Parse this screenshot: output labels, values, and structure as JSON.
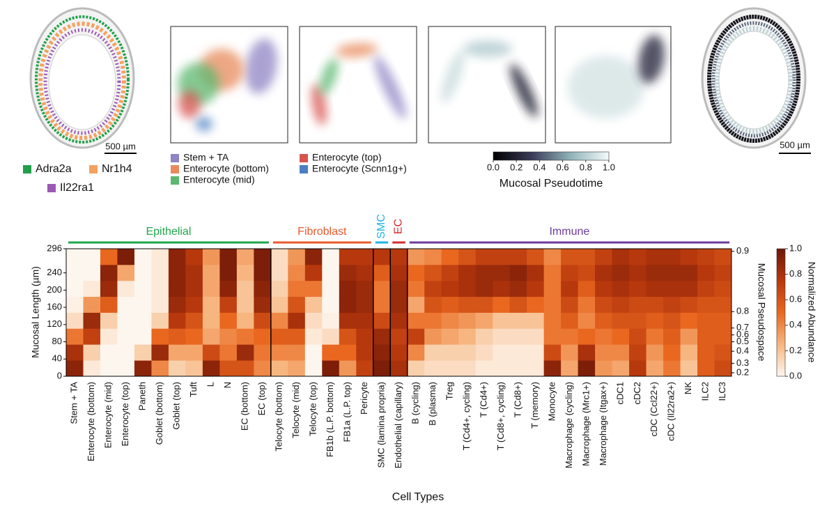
{
  "panels": {
    "gene_legend": [
      {
        "name": "Adra2a",
        "color": "#21a04a"
      },
      {
        "name": "Nr1h4",
        "color": "#f4a261"
      },
      {
        "name": "Il22ra1",
        "color": "#9b59b6"
      }
    ],
    "scale_bar": "500 µm",
    "cluster_legend": [
      {
        "name": "Stem + TA",
        "color": "#8f84c4"
      },
      {
        "name": "Enterocyte (bottom)",
        "color": "#e88a5c"
      },
      {
        "name": "Enterocyte (mid)",
        "color": "#5cb870"
      },
      {
        "name": "Enterocyte (top)",
        "color": "#d9534f"
      },
      {
        "name": "Enterocyte (Scnn1g+)",
        "color": "#4a7fc1"
      }
    ],
    "pseudotime_colorbar": {
      "label": "Mucosal Pseudotime",
      "colorscale": [
        "#000000",
        "#3b3b58",
        "#8fb3b8",
        "#f5fafa"
      ],
      "lim": [
        0,
        1
      ],
      "ticks": [
        {
          "value": 0,
          "label": "0.0"
        },
        0.2,
        0.4,
        0.6,
        0.8,
        {
          "value": 1,
          "label": "1.0"
        }
      ]
    }
  },
  "chart_data": {
    "type": "heatmap",
    "xlabel": "Cell Types",
    "ylabel": "Mucosal Length (µm)",
    "y2label": "Mucosal Pseudospace",
    "categories": [
      "Stem + TA",
      "Enterocyte (bottom)",
      "Enterocyte (mid)",
      "Enterocyte (top)",
      "Paneth",
      "Goblet (bottom)",
      "Goblet (top)",
      "Tuft",
      "L",
      "N",
      "EC (bottom)",
      "EC (top)",
      "Telocyte (bottom)",
      "Telocyte (mid)",
      "Telocyte (top)",
      "FB1b (L.P. bottom)",
      "FB1a (L.P. top)",
      "Pericyte",
      "SMC (lamina propria)",
      "Endothelial (capillary)",
      "B (cycling)",
      "B (plasma)",
      "Treg",
      "T (Cd4+, cycling)",
      "T (Cd4+)",
      "T (Cd8+, cycling)",
      "T (Cd8+)",
      "T (memory)",
      "Monocyte",
      "Macrophage (cycling)",
      "Macrophage (Mrc1+)",
      "Macrophage (Itgax+)",
      "cDC1",
      "cDC2",
      "cDC (Ccl22+)",
      "cDC (Il22ra2+)",
      "NK",
      "ILC2",
      "ILC3"
    ],
    "groups": [
      {
        "name": "Epithelial",
        "color": "#1ea64c",
        "count": 12
      },
      {
        "name": "Fibroblast",
        "color": "#e9582c",
        "count": 6
      },
      {
        "name": "SMC",
        "color": "#1fb3e6",
        "count": 1
      },
      {
        "name": "EC",
        "color": "#d42a2e",
        "count": 1
      },
      {
        "name": "Immune",
        "color": "#6b3b9c",
        "count": 19
      }
    ],
    "y_bins": [
      0,
      37,
      74,
      111,
      148,
      185,
      222,
      259,
      296
    ],
    "values": [
      [
        0.9,
        0.8,
        0.45,
        0.1,
        0.02,
        0,
        0,
        0
      ],
      [
        0.05,
        0.15,
        0.7,
        0.85,
        0.35,
        0.05,
        0,
        0
      ],
      [
        0,
        0,
        0.05,
        0.15,
        0.55,
        0.85,
        0.9,
        0.5
      ],
      [
        0,
        0,
        0,
        0,
        0,
        0.05,
        0.3,
        0.95
      ],
      [
        0.9,
        0.15,
        0,
        0,
        0,
        0,
        0,
        0
      ],
      [
        0.4,
        0.85,
        0.5,
        0.15,
        0.05,
        0.05,
        0.05,
        0.05
      ],
      [
        0.15,
        0.3,
        0.55,
        0.75,
        0.85,
        0.9,
        0.9,
        0.9
      ],
      [
        0.2,
        0.3,
        0.5,
        0.6,
        0.75,
        0.8,
        0.8,
        0.75
      ],
      [
        0.9,
        0.65,
        0.3,
        0.25,
        0.25,
        0.3,
        0.3,
        0.35
      ],
      [
        0.6,
        0.45,
        0.4,
        0.5,
        0.7,
        0.9,
        0.95,
        0.95
      ],
      [
        0.6,
        0.85,
        0.45,
        0.25,
        0.2,
        0.2,
        0.25,
        0.3
      ],
      [
        0.4,
        0.45,
        0.5,
        0.65,
        0.85,
        0.9,
        0.95,
        0.95
      ],
      [
        0.25,
        0.4,
        0.55,
        0.4,
        0.2,
        0.15,
        0.1,
        0.1
      ],
      [
        0.3,
        0.4,
        0.55,
        0.8,
        0.6,
        0.45,
        0.4,
        0.35
      ],
      [
        0,
        0,
        0.05,
        0.1,
        0.2,
        0.45,
        0.75,
        0.9
      ],
      [
        0.95,
        0.5,
        0.1,
        0.02,
        0,
        0,
        0,
        0
      ],
      [
        0.35,
        0.5,
        0.6,
        0.8,
        0.9,
        0.9,
        0.85,
        0.75
      ],
      [
        0.7,
        0.75,
        0.75,
        0.8,
        0.85,
        0.85,
        0.8,
        0.75
      ],
      [
        0.95,
        0.9,
        0.85,
        0.65,
        0.45,
        0.45,
        0.55,
        0.75
      ],
      [
        0.8,
        0.75,
        0.7,
        0.8,
        0.85,
        0.85,
        0.8,
        0.75
      ],
      [
        0.15,
        0.4,
        0.7,
        0.45,
        0.3,
        0.45,
        0.5,
        0.35
      ],
      [
        0.1,
        0.15,
        0.35,
        0.45,
        0.6,
        0.7,
        0.6,
        0.4
      ],
      [
        0.1,
        0.15,
        0.3,
        0.4,
        0.55,
        0.75,
        0.7,
        0.5
      ],
      [
        0.1,
        0.15,
        0.25,
        0.35,
        0.6,
        0.8,
        0.8,
        0.6
      ],
      [
        0.05,
        0.1,
        0.15,
        0.3,
        0.6,
        0.85,
        0.85,
        0.7
      ],
      [
        0.05,
        0.05,
        0.1,
        0.2,
        0.5,
        0.8,
        0.85,
        0.7
      ],
      [
        0.05,
        0.05,
        0.1,
        0.2,
        0.6,
        0.85,
        0.9,
        0.7
      ],
      [
        0.05,
        0.05,
        0.1,
        0.2,
        0.5,
        0.75,
        0.8,
        0.6
      ],
      [
        0.9,
        0.65,
        0.45,
        0.45,
        0.45,
        0.45,
        0.45,
        0.4
      ],
      [
        0.3,
        0.35,
        0.45,
        0.55,
        0.65,
        0.75,
        0.7,
        0.6
      ],
      [
        0.95,
        0.8,
        0.5,
        0.4,
        0.45,
        0.55,
        0.65,
        0.6
      ],
      [
        0.35,
        0.4,
        0.45,
        0.55,
        0.65,
        0.75,
        0.8,
        0.7
      ],
      [
        0.3,
        0.4,
        0.5,
        0.6,
        0.7,
        0.8,
        0.85,
        0.8
      ],
      [
        0.75,
        0.7,
        0.65,
        0.6,
        0.65,
        0.75,
        0.8,
        0.75
      ],
      [
        0.3,
        0.35,
        0.45,
        0.55,
        0.65,
        0.8,
        0.85,
        0.8
      ],
      [
        0.45,
        0.5,
        0.55,
        0.6,
        0.7,
        0.8,
        0.85,
        0.8
      ],
      [
        0.2,
        0.25,
        0.35,
        0.5,
        0.65,
        0.8,
        0.85,
        0.75
      ],
      [
        0.55,
        0.55,
        0.55,
        0.55,
        0.6,
        0.7,
        0.75,
        0.7
      ],
      [
        0.65,
        0.6,
        0.55,
        0.55,
        0.6,
        0.65,
        0.7,
        0.65
      ]
    ],
    "ylim": [
      0,
      296
    ],
    "yticks": [
      0,
      40,
      80,
      120,
      160,
      200,
      240,
      296
    ],
    "y2ticks": [
      0.2,
      0.3,
      0.4,
      0.5,
      0.6,
      0.7,
      0.8,
      0.9
    ],
    "y2tick_length": [
      8,
      30,
      58,
      80,
      96,
      112,
      150,
      290
    ],
    "colorscale": [
      "#fdf6ee",
      "#f7b680",
      "#e9671f",
      "#b8380d",
      "#6e1708"
    ],
    "colorbar": {
      "label": "Normalized Abundance",
      "lim": [
        0,
        1
      ],
      "ticks": [
        {
          "value": 0,
          "label": "0.0"
        },
        0.2,
        0.4,
        0.6,
        0.8,
        {
          "value": 1,
          "label": "1.0"
        }
      ]
    }
  }
}
